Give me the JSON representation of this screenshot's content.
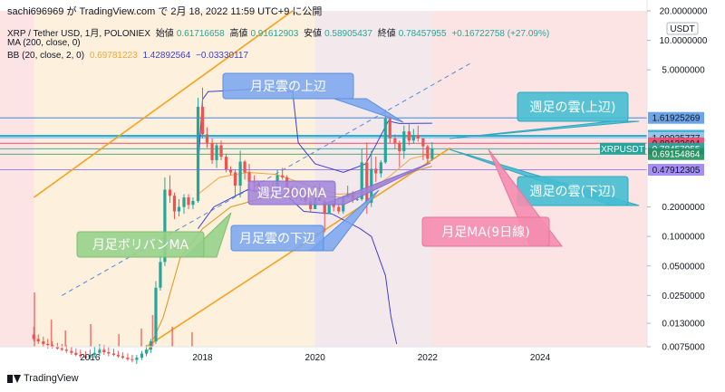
{
  "header": {
    "published_by": "sachi696969 が TradingView.com で 2月 18, 2022 11:59 UTC+9 に公開",
    "symbol": "XRP / Tether USD, 1月, POLONIEX",
    "open_label": "始値",
    "open": "0.61716658",
    "high_label": "高値",
    "high": "0.91612903",
    "low_label": "安値",
    "low": "0.58905437",
    "close_label": "終値",
    "close": "0.78457955",
    "change": "+0.16722758 (+27.09%)",
    "ma_label": "MA (200, close, 0)",
    "bb_label": "BB (20, close, 2, 0)",
    "bb_basis": "0.69781223",
    "bb_upper": "1.42892564",
    "bb_lower": "−0.03330117"
  },
  "footer": {
    "brand": "TradingView"
  },
  "colors": {
    "up": "#26a69a",
    "down": "#ef5350",
    "bb": "#3f3fd1",
    "ma": "#f3a73b",
    "channel": "#f7a21e",
    "blue_line": "#7fb0f0",
    "cyan": "#57c8d8"
  },
  "chart_data": {
    "type": "candlestick",
    "symbol": "XRPUSDT",
    "y_scale": "log",
    "y_ticks": [
      "20.0000000",
      "10.0000000",
      "5.0000000",
      "0.2000000",
      "0.1000000",
      "0.0500000",
      "0.0250000",
      "0.0130000",
      "0.0075000"
    ],
    "y_tick_values": [
      20,
      10,
      5,
      0.2,
      0.1,
      0.05,
      0.025,
      0.013,
      0.0075
    ],
    "y_unit": "USDT",
    "x_ticks": [
      "2016",
      "2018",
      "2020",
      "2022",
      "2024"
    ],
    "x_tick_values": [
      2016,
      2018,
      2020,
      2022,
      2024
    ],
    "current": {
      "label": "XRPUSDT",
      "value": "0.78457955"
    },
    "price_tags": [
      {
        "value": "1.61925269",
        "color": "#5b9be6",
        "textColor": "#131722"
      },
      {
        "value": "1.06727452",
        "color": "#5bb8e6",
        "textColor": "#131722"
      },
      {
        "value": "1.05075900",
        "color": "#3ab1c9",
        "textColor": "#131722"
      },
      {
        "value": "1.00935777",
        "color": "#a4c8f0",
        "textColor": "#131722"
      },
      {
        "value": "0.89132694",
        "color": "#f04b6b",
        "textColor": "#131722"
      },
      {
        "value": "0.78457955",
        "color": "#26a69a",
        "textColor": "#ffffff"
      },
      {
        "value": "0.69154864",
        "color": "#1e8f5a",
        "textColor": "#ffffff"
      },
      {
        "value": "0.47912305",
        "color": "#9b82f5",
        "textColor": "#131722"
      }
    ],
    "annotations": [
      "月足雲の上辺",
      "週足の雲(上辺)",
      "週足の雲(下辺)",
      "月足MA(9日線)",
      "月足ボリバンMA",
      "月足雲の下辺",
      "週足200MA"
    ],
    "candles": [
      [
        2015.0,
        0.01,
        0.012,
        0.0085,
        0.009
      ],
      [
        2015.08,
        0.009,
        0.01,
        0.008,
        0.0085
      ],
      [
        2015.17,
        0.0085,
        0.0095,
        0.0075,
        0.008
      ],
      [
        2015.25,
        0.008,
        0.009,
        0.0072,
        0.0078
      ],
      [
        2015.33,
        0.0078,
        0.0085,
        0.0072,
        0.0075
      ],
      [
        2015.42,
        0.0075,
        0.0082,
        0.007,
        0.0072
      ],
      [
        2015.5,
        0.0072,
        0.008,
        0.0068,
        0.007
      ],
      [
        2015.58,
        0.007,
        0.0078,
        0.0065,
        0.0068
      ],
      [
        2015.67,
        0.0068,
        0.0075,
        0.0062,
        0.0065
      ],
      [
        2015.75,
        0.0065,
        0.0072,
        0.006,
        0.0062
      ],
      [
        2015.83,
        0.0062,
        0.007,
        0.0058,
        0.006
      ],
      [
        2015.92,
        0.006,
        0.0068,
        0.0056,
        0.0058
      ],
      [
        2016.0,
        0.0058,
        0.007,
        0.0055,
        0.0062
      ],
      [
        2016.08,
        0.0062,
        0.0075,
        0.0058,
        0.0065
      ],
      [
        2016.17,
        0.0065,
        0.008,
        0.006,
        0.007
      ],
      [
        2016.25,
        0.007,
        0.0078,
        0.0062,
        0.0066
      ],
      [
        2016.33,
        0.0066,
        0.0074,
        0.006,
        0.0064
      ],
      [
        2016.42,
        0.0064,
        0.0072,
        0.006,
        0.0062
      ],
      [
        2016.5,
        0.0062,
        0.0068,
        0.0058,
        0.006
      ],
      [
        2016.58,
        0.006,
        0.0066,
        0.0056,
        0.0058
      ],
      [
        2016.67,
        0.0058,
        0.0064,
        0.0054,
        0.0056
      ],
      [
        2016.75,
        0.0056,
        0.0062,
        0.0052,
        0.0055
      ],
      [
        2016.83,
        0.0055,
        0.0062,
        0.005,
        0.0058
      ],
      [
        2016.92,
        0.0058,
        0.0068,
        0.0055,
        0.0064
      ],
      [
        2017.0,
        0.0064,
        0.0078,
        0.006,
        0.007
      ],
      [
        2017.08,
        0.007,
        0.009,
        0.0065,
        0.0085
      ],
      [
        2017.17,
        0.0085,
        0.035,
        0.008,
        0.03
      ],
      [
        2017.25,
        0.03,
        0.065,
        0.028,
        0.055
      ],
      [
        2017.33,
        0.055,
        0.4,
        0.05,
        0.3
      ],
      [
        2017.42,
        0.3,
        0.42,
        0.22,
        0.26
      ],
      [
        2017.5,
        0.26,
        0.28,
        0.15,
        0.18
      ],
      [
        2017.58,
        0.18,
        0.24,
        0.16,
        0.2
      ],
      [
        2017.67,
        0.2,
        0.27,
        0.17,
        0.25
      ],
      [
        2017.75,
        0.25,
        0.27,
        0.19,
        0.21
      ],
      [
        2017.83,
        0.21,
        0.25,
        0.19,
        0.23
      ],
      [
        2017.92,
        0.23,
        2.6,
        0.22,
        2.1
      ],
      [
        2018.0,
        2.1,
        3.3,
        1.0,
        1.1
      ],
      [
        2018.08,
        1.1,
        1.3,
        0.8,
        0.9
      ],
      [
        2018.17,
        0.9,
        1.0,
        0.55,
        0.6
      ],
      [
        2018.25,
        0.6,
        0.9,
        0.5,
        0.85
      ],
      [
        2018.33,
        0.85,
        0.95,
        0.6,
        0.65
      ],
      [
        2018.42,
        0.65,
        0.7,
        0.45,
        0.48
      ],
      [
        2018.5,
        0.48,
        0.52,
        0.42,
        0.45
      ],
      [
        2018.58,
        0.45,
        0.48,
        0.26,
        0.33
      ],
      [
        2018.67,
        0.33,
        0.75,
        0.25,
        0.58
      ],
      [
        2018.75,
        0.58,
        0.6,
        0.38,
        0.45
      ],
      [
        2018.83,
        0.45,
        0.55,
        0.3,
        0.36
      ],
      [
        2018.92,
        0.36,
        0.42,
        0.28,
        0.35
      ],
      [
        2019.0,
        0.35,
        0.37,
        0.29,
        0.31
      ],
      [
        2019.08,
        0.31,
        0.34,
        0.29,
        0.32
      ],
      [
        2019.17,
        0.32,
        0.33,
        0.29,
        0.31
      ],
      [
        2019.25,
        0.31,
        0.37,
        0.29,
        0.3
      ],
      [
        2019.33,
        0.3,
        0.48,
        0.29,
        0.42
      ],
      [
        2019.42,
        0.42,
        0.5,
        0.38,
        0.4
      ],
      [
        2019.5,
        0.4,
        0.42,
        0.29,
        0.31
      ],
      [
        2019.58,
        0.31,
        0.33,
        0.25,
        0.26
      ],
      [
        2019.67,
        0.26,
        0.33,
        0.24,
        0.25
      ],
      [
        2019.75,
        0.25,
        0.32,
        0.23,
        0.3
      ],
      [
        2019.83,
        0.3,
        0.31,
        0.21,
        0.23
      ],
      [
        2019.92,
        0.23,
        0.24,
        0.18,
        0.19
      ],
      [
        2020.0,
        0.19,
        0.33,
        0.19,
        0.25
      ],
      [
        2020.08,
        0.25,
        0.35,
        0.23,
        0.23
      ],
      [
        2020.17,
        0.23,
        0.24,
        0.11,
        0.17
      ],
      [
        2020.25,
        0.17,
        0.23,
        0.17,
        0.21
      ],
      [
        2020.33,
        0.21,
        0.23,
        0.18,
        0.2
      ],
      [
        2020.42,
        0.2,
        0.21,
        0.17,
        0.18
      ],
      [
        2020.5,
        0.18,
        0.26,
        0.17,
        0.25
      ],
      [
        2020.58,
        0.25,
        0.33,
        0.25,
        0.27
      ],
      [
        2020.67,
        0.27,
        0.29,
        0.22,
        0.24
      ],
      [
        2020.75,
        0.24,
        0.26,
        0.23,
        0.24
      ],
      [
        2020.83,
        0.24,
        0.78,
        0.23,
        0.57
      ],
      [
        2020.92,
        0.57,
        0.91,
        0.17,
        0.22
      ],
      [
        2021.0,
        0.22,
        0.75,
        0.2,
        0.49
      ],
      [
        2021.08,
        0.49,
        0.65,
        0.36,
        0.44
      ],
      [
        2021.17,
        0.44,
        0.6,
        0.4,
        0.57
      ],
      [
        2021.25,
        0.57,
        1.96,
        0.55,
        1.59
      ],
      [
        2021.33,
        1.59,
        1.75,
        0.9,
        1.0
      ],
      [
        2021.42,
        1.0,
        1.1,
        0.78,
        0.9
      ],
      [
        2021.5,
        0.9,
        0.95,
        0.51,
        0.74
      ],
      [
        2021.58,
        0.74,
        1.35,
        0.62,
        1.18
      ],
      [
        2021.67,
        1.18,
        1.42,
        0.85,
        0.95
      ],
      [
        2021.75,
        0.95,
        1.25,
        0.88,
        1.08
      ],
      [
        2021.83,
        1.08,
        1.35,
        0.93,
        1.0
      ],
      [
        2021.92,
        1.0,
        1.01,
        0.6,
        0.83
      ],
      [
        2022.0,
        0.83,
        0.86,
        0.55,
        0.62
      ],
      [
        2022.08,
        0.617,
        0.9161,
        0.5891,
        0.7846
      ]
    ],
    "bb_upper_line": [
      [
        2017.92,
        0.5
      ],
      [
        2018.0,
        2.5
      ],
      [
        2018.1,
        3.0
      ],
      [
        2019.0,
        3.2
      ],
      [
        2019.6,
        3.0
      ],
      [
        2019.7,
        0.9
      ],
      [
        2020.0,
        0.55
      ],
      [
        2020.5,
        0.45
      ],
      [
        2020.9,
        0.55
      ],
      [
        2021.1,
        0.9
      ],
      [
        2021.3,
        1.5
      ],
      [
        2021.5,
        1.42
      ],
      [
        2022.08,
        1.43
      ]
    ],
    "bb_lower_line": [
      [
        2017.92,
        0.12
      ],
      [
        2018.2,
        0.2
      ],
      [
        2018.8,
        0.3
      ],
      [
        2019.5,
        0.26
      ],
      [
        2019.8,
        0.18
      ],
      [
        2020.3,
        0.17
      ],
      [
        2020.8,
        0.12
      ],
      [
        2021.0,
        0.1
      ],
      [
        2021.25,
        0.04
      ],
      [
        2021.35,
        0.015
      ],
      [
        2021.45,
        0.008
      ]
    ],
    "bb_basis_line": [
      [
        2017.92,
        0.27
      ],
      [
        2018.3,
        0.4
      ],
      [
        2018.8,
        0.45
      ],
      [
        2019.3,
        0.43
      ],
      [
        2019.9,
        0.33
      ],
      [
        2020.4,
        0.27
      ],
      [
        2020.9,
        0.28
      ],
      [
        2021.3,
        0.4
      ],
      [
        2021.7,
        0.62
      ],
      [
        2022.08,
        0.7
      ]
    ],
    "ma_line": [
      [
        2017.0,
        0.0062
      ],
      [
        2017.3,
        0.015
      ],
      [
        2017.6,
        0.06
      ],
      [
        2018.0,
        0.12
      ],
      [
        2018.5,
        0.2
      ],
      [
        2019.0,
        0.24
      ],
      [
        2019.5,
        0.27
      ],
      [
        2020.0,
        0.26
      ],
      [
        2020.5,
        0.25
      ],
      [
        2021.0,
        0.3
      ],
      [
        2021.5,
        0.42
      ],
      [
        2022.08,
        0.52
      ]
    ],
    "channel_lines": [
      [
        [
          2017.0,
          0.0075
        ],
        [
          2022.4,
          0.8
        ]
      ],
      [
        [
          2015.0,
          0.25
        ],
        [
          2019.6,
          20.0
        ]
      ]
    ],
    "dashed_trend": [
      [
        2015.5,
        0.025
      ],
      [
        2022.8,
        6.0
      ]
    ],
    "hlines": [
      {
        "y": 1.61925269,
        "color": "#5b9be6",
        "w": 1.2
      },
      {
        "y": 1.06727452,
        "color": "#2ab0d6",
        "w": 1.6
      },
      {
        "y": 1.050759,
        "color": "#2ab0d6",
        "w": 1.6
      },
      {
        "y": 1.00935777,
        "color": "#a4c8f0",
        "w": 1
      },
      {
        "y": 0.89132694,
        "color": "#f04b6b",
        "w": 1
      },
      {
        "y": 0.78457955,
        "color": "#26a69a",
        "w": 0.8
      },
      {
        "y": 0.69154864,
        "color": "#1e8f5a",
        "w": 0.8
      },
      {
        "y": 0.47912305,
        "color": "#9b82f5",
        "w": 1
      }
    ]
  }
}
